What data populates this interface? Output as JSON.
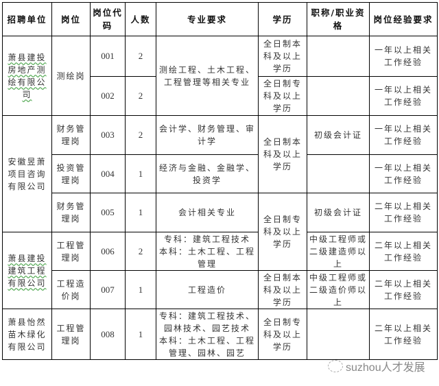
{
  "headers": [
    "招聘单位",
    "岗位",
    "岗位代码",
    "人数",
    "专业要求",
    "学历",
    "职称/职业资格",
    "岗位经验要求"
  ],
  "units": [
    "萧县建投房地产测绘有限公司",
    "安徽昱萧项目咨询有限公司",
    "萧县建投建筑工程有限公司",
    "萧县怡然苗木绿化有限公司"
  ],
  "rows": [
    {
      "post": "测绘岗",
      "code": "001",
      "count": "2",
      "major": "测绘工程、土木工程、工程管理等相关专业",
      "edu": "全日制本科及以上学历",
      "title": "",
      "exp": "一年以上相关工作经验"
    },
    {
      "post": "",
      "code": "002",
      "count": "2",
      "major": "",
      "edu": "全日制专科及以上学历",
      "title": "",
      "exp": "一年以上相关工作经验"
    },
    {
      "post": "财务管理岗",
      "code": "003",
      "count": "2",
      "major": "会计学、财务管理、审计学",
      "edu": "全日制本科及以上学历",
      "title": "初级会计证",
      "exp": "一年以上相关工作经验"
    },
    {
      "post": "投资管理岗",
      "code": "004",
      "count": "1",
      "major": "经济与金融、金融学、投资学",
      "edu": "",
      "title": "",
      "exp": "一年以上相关工作经验"
    },
    {
      "post": "财务管理岗",
      "code": "005",
      "count": "1",
      "major": "会计相关专业",
      "edu": "全日制专科及以上学历",
      "title": "初级会计证",
      "exp": "二年以上相关工作经验"
    },
    {
      "post": "工程管理岗",
      "code": "006",
      "count": "2",
      "major": "专科：建筑工程技术 本科：土木工程、工程管理",
      "edu": "",
      "title": "中级工程师或二级建造师以上",
      "exp": "二年以上相关工作经验"
    },
    {
      "post": "工程造价岗",
      "code": "007",
      "count": "1",
      "major": "工程造价",
      "edu": "全日制本科及以上学历",
      "title": "中级工程师或二级造价师以上",
      "exp": "二年以上相关工作经验"
    },
    {
      "post": "工程管理岗",
      "code": "008",
      "count": "1",
      "major": "专科：建筑工程技术、园林技术、园艺技术 本科：土木工程、工程管理、园林、园艺",
      "edu": "全日制专科及以上学历",
      "title": "",
      "exp": "二年以上相关工作经验"
    }
  ],
  "watermark": "suzhou人才发展",
  "icons": {
    "watermark": "wechat-icon"
  }
}
